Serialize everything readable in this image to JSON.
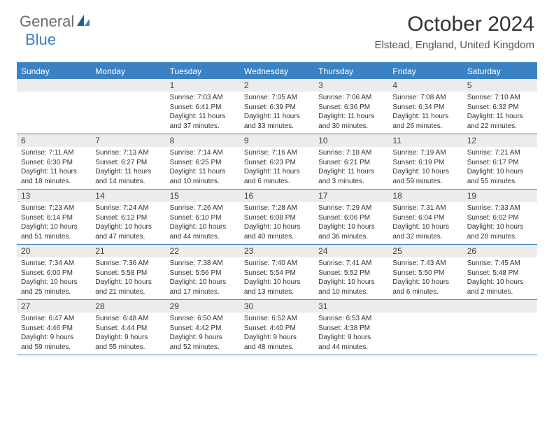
{
  "logo": {
    "part1": "General",
    "part2": "Blue"
  },
  "title": "October 2024",
  "location": "Elstead, England, United Kingdom",
  "colors": {
    "header_bar": "#3b82c4",
    "daynum_bg": "#ececec",
    "text": "#333333",
    "logo_gray": "#6b6b6b",
    "logo_blue": "#3b82c4",
    "background": "#ffffff"
  },
  "day_names": [
    "Sunday",
    "Monday",
    "Tuesday",
    "Wednesday",
    "Thursday",
    "Friday",
    "Saturday"
  ],
  "weeks": [
    [
      {
        "empty": true
      },
      {
        "empty": true
      },
      {
        "day": "1",
        "sunrise": "7:03 AM",
        "sunset": "6:41 PM",
        "daylight": "11 hours and 37 minutes."
      },
      {
        "day": "2",
        "sunrise": "7:05 AM",
        "sunset": "6:39 PM",
        "daylight": "11 hours and 33 minutes."
      },
      {
        "day": "3",
        "sunrise": "7:06 AM",
        "sunset": "6:36 PM",
        "daylight": "11 hours and 30 minutes."
      },
      {
        "day": "4",
        "sunrise": "7:08 AM",
        "sunset": "6:34 PM",
        "daylight": "11 hours and 26 minutes."
      },
      {
        "day": "5",
        "sunrise": "7:10 AM",
        "sunset": "6:32 PM",
        "daylight": "11 hours and 22 minutes."
      }
    ],
    [
      {
        "day": "6",
        "sunrise": "7:11 AM",
        "sunset": "6:30 PM",
        "daylight": "11 hours and 18 minutes."
      },
      {
        "day": "7",
        "sunrise": "7:13 AM",
        "sunset": "6:27 PM",
        "daylight": "11 hours and 14 minutes."
      },
      {
        "day": "8",
        "sunrise": "7:14 AM",
        "sunset": "6:25 PM",
        "daylight": "11 hours and 10 minutes."
      },
      {
        "day": "9",
        "sunrise": "7:16 AM",
        "sunset": "6:23 PM",
        "daylight": "11 hours and 6 minutes."
      },
      {
        "day": "10",
        "sunrise": "7:18 AM",
        "sunset": "6:21 PM",
        "daylight": "11 hours and 3 minutes."
      },
      {
        "day": "11",
        "sunrise": "7:19 AM",
        "sunset": "6:19 PM",
        "daylight": "10 hours and 59 minutes."
      },
      {
        "day": "12",
        "sunrise": "7:21 AM",
        "sunset": "6:17 PM",
        "daylight": "10 hours and 55 minutes."
      }
    ],
    [
      {
        "day": "13",
        "sunrise": "7:23 AM",
        "sunset": "6:14 PM",
        "daylight": "10 hours and 51 minutes."
      },
      {
        "day": "14",
        "sunrise": "7:24 AM",
        "sunset": "6:12 PM",
        "daylight": "10 hours and 47 minutes."
      },
      {
        "day": "15",
        "sunrise": "7:26 AM",
        "sunset": "6:10 PM",
        "daylight": "10 hours and 44 minutes."
      },
      {
        "day": "16",
        "sunrise": "7:28 AM",
        "sunset": "6:08 PM",
        "daylight": "10 hours and 40 minutes."
      },
      {
        "day": "17",
        "sunrise": "7:29 AM",
        "sunset": "6:06 PM",
        "daylight": "10 hours and 36 minutes."
      },
      {
        "day": "18",
        "sunrise": "7:31 AM",
        "sunset": "6:04 PM",
        "daylight": "10 hours and 32 minutes."
      },
      {
        "day": "19",
        "sunrise": "7:33 AM",
        "sunset": "6:02 PM",
        "daylight": "10 hours and 28 minutes."
      }
    ],
    [
      {
        "day": "20",
        "sunrise": "7:34 AM",
        "sunset": "6:00 PM",
        "daylight": "10 hours and 25 minutes."
      },
      {
        "day": "21",
        "sunrise": "7:36 AM",
        "sunset": "5:58 PM",
        "daylight": "10 hours and 21 minutes."
      },
      {
        "day": "22",
        "sunrise": "7:38 AM",
        "sunset": "5:56 PM",
        "daylight": "10 hours and 17 minutes."
      },
      {
        "day": "23",
        "sunrise": "7:40 AM",
        "sunset": "5:54 PM",
        "daylight": "10 hours and 13 minutes."
      },
      {
        "day": "24",
        "sunrise": "7:41 AM",
        "sunset": "5:52 PM",
        "daylight": "10 hours and 10 minutes."
      },
      {
        "day": "25",
        "sunrise": "7:43 AM",
        "sunset": "5:50 PM",
        "daylight": "10 hours and 6 minutes."
      },
      {
        "day": "26",
        "sunrise": "7:45 AM",
        "sunset": "5:48 PM",
        "daylight": "10 hours and 2 minutes."
      }
    ],
    [
      {
        "day": "27",
        "sunrise": "6:47 AM",
        "sunset": "4:46 PM",
        "daylight": "9 hours and 59 minutes."
      },
      {
        "day": "28",
        "sunrise": "6:48 AM",
        "sunset": "4:44 PM",
        "daylight": "9 hours and 55 minutes."
      },
      {
        "day": "29",
        "sunrise": "6:50 AM",
        "sunset": "4:42 PM",
        "daylight": "9 hours and 52 minutes."
      },
      {
        "day": "30",
        "sunrise": "6:52 AM",
        "sunset": "4:40 PM",
        "daylight": "9 hours and 48 minutes."
      },
      {
        "day": "31",
        "sunrise": "6:53 AM",
        "sunset": "4:38 PM",
        "daylight": "9 hours and 44 minutes."
      },
      {
        "empty": true
      },
      {
        "empty": true
      }
    ]
  ]
}
